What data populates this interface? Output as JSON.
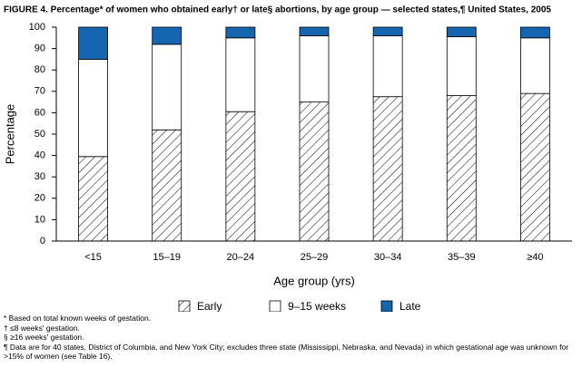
{
  "chart_data": {
    "type": "stacked-bar",
    "title": "FIGURE 4. Percentage* of women who obtained early† or late§ abortions, by age group — selected states,¶ United States, 2005",
    "x_label": "Age group (yrs)",
    "y_label": "Percentage",
    "categories": [
      "<15",
      "15–19",
      "20–24",
      "25–29",
      "30–34",
      "35–39",
      "≥40"
    ],
    "series": [
      {
        "name": "Early",
        "color": "#ffffff",
        "pattern": "diagonal-hatch",
        "values": [
          39.5,
          52,
          60.5,
          65,
          67.5,
          68,
          69
        ]
      },
      {
        "name": "9–15 weeks",
        "color": "#ffffff",
        "values": [
          45.5,
          40,
          34.5,
          31,
          28.5,
          27.5,
          26
        ]
      },
      {
        "name": "Late",
        "color": "#1565b0",
        "values": [
          15,
          8,
          5,
          4,
          4,
          4.5,
          5
        ]
      }
    ],
    "ylim": [
      0,
      100
    ],
    "yticks": [
      0,
      10,
      20,
      30,
      40,
      50,
      60,
      70,
      80,
      90,
      100
    ],
    "footnotes": [
      "* Based on total known weeks of gestation.",
      "† ≤8 weeks' gestation.",
      "§ ≥16 weeks' gestation.",
      "¶ Data are for 40 states, District of Columbia, and New York City; excludes three state (Mississippi, Nebraska, and Nevada) in which gestational age was unknown for >15% of women (see Table 16)."
    ]
  }
}
